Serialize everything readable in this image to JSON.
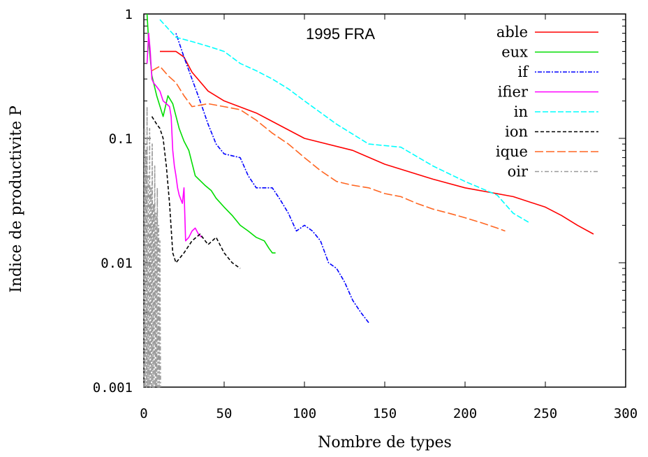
{
  "chart_data": {
    "type": "line",
    "title": "1995 FRA",
    "xlabel": "Nombre de types",
    "ylabel": "Indice de productivite P",
    "xlim": [
      0,
      300
    ],
    "ylim": [
      0.001,
      1
    ],
    "yscale": "log",
    "x_ticks": [
      {
        "value": 0,
        "label": "0"
      },
      {
        "value": 50,
        "label": "50"
      },
      {
        "value": 100,
        "label": "100"
      },
      {
        "value": 150,
        "label": "150"
      },
      {
        "value": 200,
        "label": "200"
      },
      {
        "value": 250,
        "label": "250"
      },
      {
        "value": 300,
        "label": "300"
      }
    ],
    "y_ticks": [
      {
        "value": 1,
        "label": "1"
      },
      {
        "value": 0.1,
        "label": "0.1"
      },
      {
        "value": 0.01,
        "label": "0.01"
      },
      {
        "value": 0.001,
        "label": "0.001"
      }
    ],
    "grid": false,
    "legend_position": "top-right",
    "series": [
      {
        "name": "able",
        "color": "#ff0000",
        "dash": "",
        "x": [
          10,
          20,
          25,
          30,
          40,
          50,
          70,
          100,
          130,
          150,
          180,
          200,
          230,
          250,
          260,
          270,
          280
        ],
        "y": [
          0.5,
          0.5,
          0.45,
          0.34,
          0.24,
          0.2,
          0.16,
          0.1,
          0.08,
          0.062,
          0.047,
          0.04,
          0.034,
          0.028,
          0.024,
          0.02,
          0.017
        ]
      },
      {
        "name": "eux",
        "color": "#00dd00",
        "dash": "",
        "x": [
          2,
          3,
          5,
          8,
          12,
          15,
          18,
          22,
          25,
          28,
          32,
          38,
          42,
          45,
          50,
          55,
          60,
          65,
          70,
          75,
          78,
          80,
          82
        ],
        "y": [
          1,
          0.6,
          0.32,
          0.22,
          0.15,
          0.22,
          0.19,
          0.12,
          0.095,
          0.08,
          0.05,
          0.042,
          0.038,
          0.033,
          0.028,
          0.024,
          0.02,
          0.018,
          0.016,
          0.015,
          0.013,
          0.012,
          0.012
        ]
      },
      {
        "name": "if",
        "color": "#0000ff",
        "dash": "2,2,6,2",
        "x": [
          20,
          25,
          30,
          35,
          40,
          45,
          50,
          60,
          65,
          70,
          80,
          85,
          90,
          95,
          100,
          105,
          110,
          115,
          120,
          125,
          130,
          135,
          140
        ],
        "y": [
          0.7,
          0.45,
          0.3,
          0.2,
          0.13,
          0.09,
          0.075,
          0.07,
          0.05,
          0.04,
          0.04,
          0.032,
          0.025,
          0.018,
          0.02,
          0.018,
          0.015,
          0.01,
          0.009,
          0.007,
          0.005,
          0.004,
          0.0033
        ]
      },
      {
        "name": "ifier",
        "color": "#ff00ff",
        "dash": "",
        "x": [
          2,
          3,
          4,
          5,
          6,
          8,
          10,
          12,
          14,
          16,
          17,
          18,
          19,
          20,
          21,
          22,
          24,
          25,
          26,
          28,
          30,
          32,
          34,
          36
        ],
        "y": [
          0.4,
          0.7,
          0.5,
          0.3,
          0.28,
          0.26,
          0.24,
          0.2,
          0.19,
          0.18,
          0.15,
          0.08,
          0.06,
          0.05,
          0.04,
          0.035,
          0.03,
          0.04,
          0.015,
          0.016,
          0.018,
          0.019,
          0.017,
          0.016
        ]
      },
      {
        "name": "in",
        "color": "#00ffff",
        "dash": "8,3",
        "x": [
          10,
          20,
          30,
          40,
          50,
          60,
          70,
          80,
          90,
          100,
          120,
          140,
          160,
          180,
          200,
          220,
          230,
          240
        ],
        "y": [
          0.9,
          0.65,
          0.6,
          0.55,
          0.5,
          0.4,
          0.35,
          0.3,
          0.25,
          0.2,
          0.13,
          0.09,
          0.085,
          0.06,
          0.045,
          0.035,
          0.025,
          0.021
        ]
      },
      {
        "name": "ion",
        "color": "#000000",
        "dash": "5,3",
        "x": [
          5,
          8,
          10,
          12,
          14,
          16,
          18,
          20,
          25,
          30,
          35,
          40,
          45,
          50,
          55,
          60
        ],
        "y": [
          0.15,
          0.13,
          0.12,
          0.1,
          0.06,
          0.03,
          0.012,
          0.01,
          0.012,
          0.015,
          0.017,
          0.014,
          0.016,
          0.012,
          0.01,
          0.009
        ]
      },
      {
        "name": "ique",
        "color": "#ff6622",
        "dash": "12,4",
        "x": [
          5,
          10,
          15,
          20,
          25,
          30,
          40,
          50,
          60,
          70,
          80,
          90,
          100,
          110,
          120,
          130,
          140,
          150,
          160,
          170,
          180,
          190,
          200,
          210,
          220,
          225
        ],
        "y": [
          0.35,
          0.38,
          0.32,
          0.28,
          0.22,
          0.18,
          0.19,
          0.18,
          0.17,
          0.14,
          0.11,
          0.09,
          0.07,
          0.055,
          0.045,
          0.042,
          0.04,
          0.036,
          0.034,
          0.03,
          0.027,
          0.025,
          0.023,
          0.021,
          0.019,
          0.018
        ]
      },
      {
        "name": "oir",
        "color": "#999999",
        "dash": "6,3,2,3",
        "x": [
          0,
          0.4,
          0.8,
          1.2,
          1.6,
          2,
          2.4,
          2.8,
          3.2,
          3.6,
          4,
          4.4,
          4.8,
          5.2,
          5.6,
          6,
          6.4,
          6.8,
          7.2,
          7.6,
          8,
          8.4,
          8.8,
          9.2,
          9.6,
          10,
          10.4
        ],
        "y": [
          0.001,
          0.12,
          0.001,
          0.08,
          0.001,
          0.18,
          0.001,
          0.05,
          0.001,
          0.12,
          0.001,
          0.04,
          0.001,
          0.09,
          0.001,
          0.03,
          0.001,
          0.06,
          0.001,
          0.025,
          0.001,
          0.04,
          0.001,
          0.02,
          0.001,
          0.015,
          0.001
        ]
      }
    ]
  }
}
